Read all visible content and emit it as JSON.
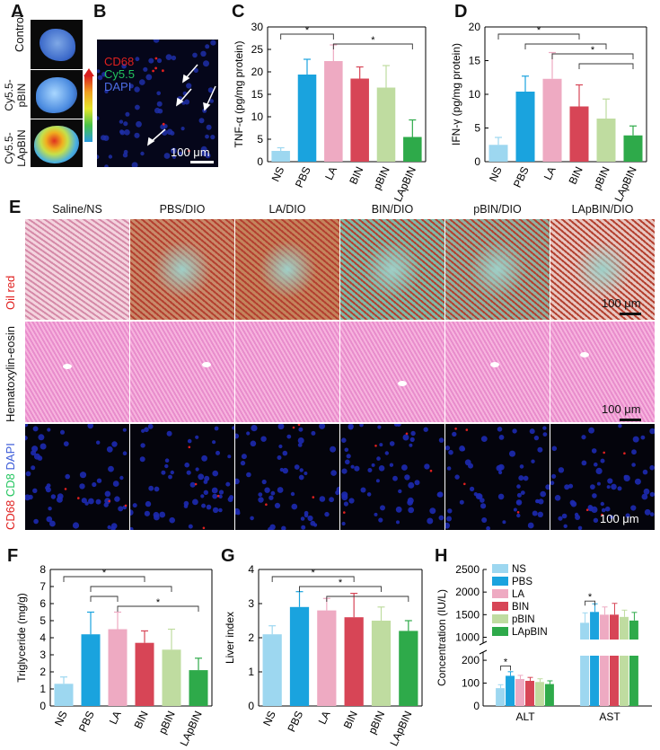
{
  "panels": {
    "A": "A",
    "B": "B",
    "C": "C",
    "D": "D",
    "E": "E",
    "F": "F",
    "G": "G",
    "H": "H"
  },
  "panel_a": {
    "labels": [
      "Control",
      "Cy5.5-pBIN",
      "Cy5.5-LApBIN"
    ]
  },
  "panel_b": {
    "channels": [
      {
        "name": "CD68",
        "color": "#e0201f"
      },
      {
        "name": "Cy5.5",
        "color": "#22c55e"
      },
      {
        "name": "DAPI",
        "color": "#3b5bd8"
      }
    ],
    "scale_bar": "100 μm"
  },
  "panel_e": {
    "columns": [
      "Saline/NS",
      "PBS/DIO",
      "LA/DIO",
      "BIN/DIO",
      "pBIN/DIO",
      "LApBIN/DIO"
    ],
    "rows": {
      "oil_red": "Oil red",
      "he": "Hematoxylin-eosin",
      "fluor": {
        "cd68": "CD68",
        "cd8": "CD8",
        "dapi": "DAPI"
      }
    },
    "scale_bar": "100 μm"
  },
  "chart_data": [
    {
      "id": "C",
      "type": "bar",
      "ylabel": "TNF-α (pg/mg protein)",
      "ylim": [
        0,
        30
      ],
      "yticks": [
        0,
        5,
        10,
        15,
        20,
        25,
        30
      ],
      "categories": [
        "NS",
        "PBS",
        "LA",
        "BIN",
        "pBIN",
        "LApBIN"
      ],
      "values": [
        2.4,
        19.4,
        22.4,
        18.5,
        16.5,
        5.5
      ],
      "errors": [
        0.7,
        3.4,
        3.6,
        2.6,
        4.9,
        3.8
      ],
      "significance": [
        {
          "pair": [
            "NS",
            "LA"
          ],
          "label": "*"
        },
        {
          "pair": [
            "LA",
            "LApBIN"
          ],
          "label": "*"
        }
      ]
    },
    {
      "id": "D",
      "type": "bar",
      "ylabel": "IFN-γ (pg/mg protein)",
      "ylim": [
        0,
        20
      ],
      "yticks": [
        0,
        5,
        10,
        15,
        20
      ],
      "categories": [
        "NS",
        "PBS",
        "LA",
        "BIN",
        "pBIN",
        "LApBIN"
      ],
      "values": [
        2.5,
        10.4,
        12.3,
        8.2,
        6.4,
        3.9
      ],
      "errors": [
        1.1,
        2.3,
        3.9,
        3.2,
        2.9,
        1.4
      ],
      "significance": [
        {
          "pair": [
            "NS",
            "BIN"
          ],
          "label": "*"
        },
        {
          "pair": [
            "PBS",
            "pBIN"
          ],
          "label": ""
        },
        {
          "pair": [
            "LA",
            "LApBIN"
          ],
          "label": "*"
        },
        {
          "pair": [
            "BIN",
            "LApBIN"
          ],
          "label": ""
        }
      ]
    },
    {
      "id": "F",
      "type": "bar",
      "ylabel": "Triglyceride (mg/g)",
      "ylim": [
        0,
        8
      ],
      "yticks": [
        0,
        1,
        2,
        3,
        4,
        5,
        6,
        7,
        8
      ],
      "categories": [
        "NS",
        "PBS",
        "LA",
        "BIN",
        "pBIN",
        "LApBIN"
      ],
      "values": [
        1.3,
        4.2,
        4.5,
        3.7,
        3.3,
        2.1
      ],
      "errors": [
        0.4,
        1.3,
        1.0,
        0.7,
        1.2,
        0.7
      ],
      "significance": [
        {
          "pair": [
            "NS",
            "BIN"
          ],
          "label": "*"
        },
        {
          "pair": [
            "PBS",
            "pBIN"
          ],
          "label": ""
        },
        {
          "pair": [
            "PBS",
            "LA"
          ],
          "label": ""
        },
        {
          "pair": [
            "LA",
            "LApBIN"
          ],
          "label": "*"
        }
      ]
    },
    {
      "id": "G",
      "type": "bar",
      "ylabel": "Liver index",
      "ylim": [
        0,
        4
      ],
      "yticks": [
        0,
        1,
        2,
        3,
        4
      ],
      "categories": [
        "NS",
        "PBS",
        "LA",
        "BIN",
        "pBIN",
        "LApBIN"
      ],
      "values": [
        2.1,
        2.9,
        2.8,
        2.6,
        2.5,
        2.2
      ],
      "errors": [
        0.25,
        0.45,
        0.35,
        0.7,
        0.4,
        0.3
      ],
      "significance": [
        {
          "pair": [
            "NS",
            "BIN"
          ],
          "label": "*"
        },
        {
          "pair": [
            "PBS",
            "pBIN"
          ],
          "label": "*"
        },
        {
          "pair": [
            "LA",
            "LApBIN"
          ],
          "label": ""
        }
      ]
    },
    {
      "id": "H",
      "type": "bar",
      "ylabel": "Concentration (IU/L)",
      "yticks_low": [
        0,
        100,
        200
      ],
      "yticks_high": [
        1000,
        1500,
        2000,
        2500
      ],
      "groups": [
        "ALT",
        "AST"
      ],
      "series": [
        {
          "name": "NS",
          "color": "#9dd7f0",
          "values": [
            78,
            1320
          ],
          "errors": [
            15,
            220
          ]
        },
        {
          "name": "PBS",
          "color": "#1aa3de",
          "values": [
            132,
            1560
          ],
          "errors": [
            18,
            180
          ]
        },
        {
          "name": "LA",
          "color": "#eeaac2",
          "values": [
            118,
            1500
          ],
          "errors": [
            16,
            170
          ]
        },
        {
          "name": "BIN",
          "color": "#d74556",
          "values": [
            110,
            1500
          ],
          "errors": [
            15,
            250
          ]
        },
        {
          "name": "pBIN",
          "color": "#bfdca0",
          "values": [
            105,
            1450
          ],
          "errors": [
            14,
            150
          ]
        },
        {
          "name": "LApBIN",
          "color": "#2eaa4a",
          "values": [
            96,
            1370
          ],
          "errors": [
            14,
            180
          ]
        }
      ],
      "significance": [
        {
          "group": "ALT",
          "label": "*"
        },
        {
          "group": "AST",
          "label": "*"
        }
      ]
    }
  ],
  "colors": {
    "NS": "#9dd7f0",
    "PBS": "#1aa3de",
    "LA": "#eeaac2",
    "BIN": "#d74556",
    "pBIN": "#bfdca0",
    "LApBIN": "#2eaa4a"
  }
}
